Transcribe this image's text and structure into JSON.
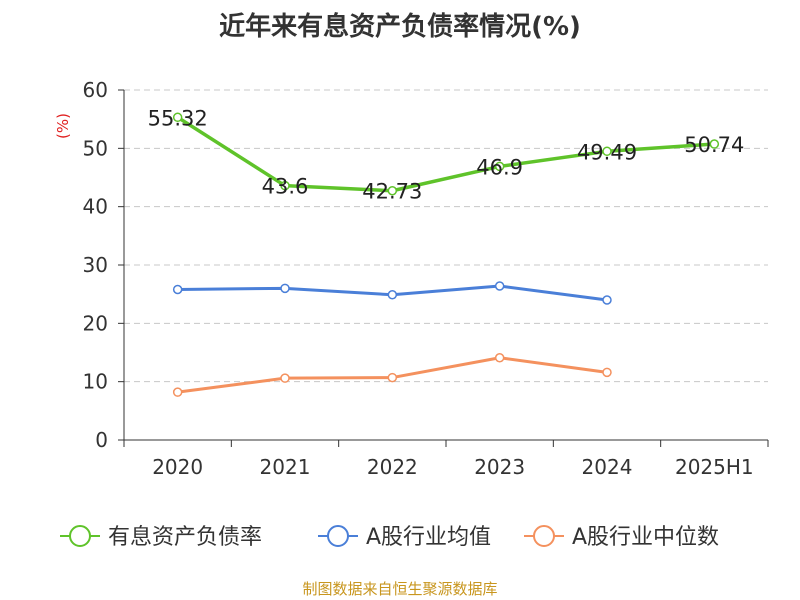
{
  "chart_data": {
    "type": "line",
    "title": "近年来有息资产负债率情况(%)",
    "ylabel": "(%)",
    "xlabel": "",
    "categories": [
      "2020",
      "2021",
      "2022",
      "2023",
      "2024",
      "2025H1"
    ],
    "ylim": [
      0,
      60
    ],
    "yticks": [
      0,
      10,
      20,
      30,
      40,
      50,
      60
    ],
    "grid": true,
    "legend_position": "bottom",
    "series": [
      {
        "name": "有息资产负债率",
        "color": "#5fc32a",
        "values": [
          55.32,
          43.6,
          42.73,
          46.9,
          49.49,
          50.74
        ],
        "labels": [
          "55.32",
          "43.6",
          "42.73",
          "46.9",
          "49.49",
          "50.74"
        ]
      },
      {
        "name": "A股行业均值",
        "color": "#4a7fd8",
        "values": [
          25.8,
          26.0,
          24.9,
          26.4,
          24.0,
          null
        ]
      },
      {
        "name": "A股行业中位数",
        "color": "#f4915e",
        "values": [
          8.2,
          10.6,
          10.7,
          14.1,
          11.6,
          null
        ]
      }
    ],
    "source": "制图数据来自恒生聚源数据库"
  }
}
